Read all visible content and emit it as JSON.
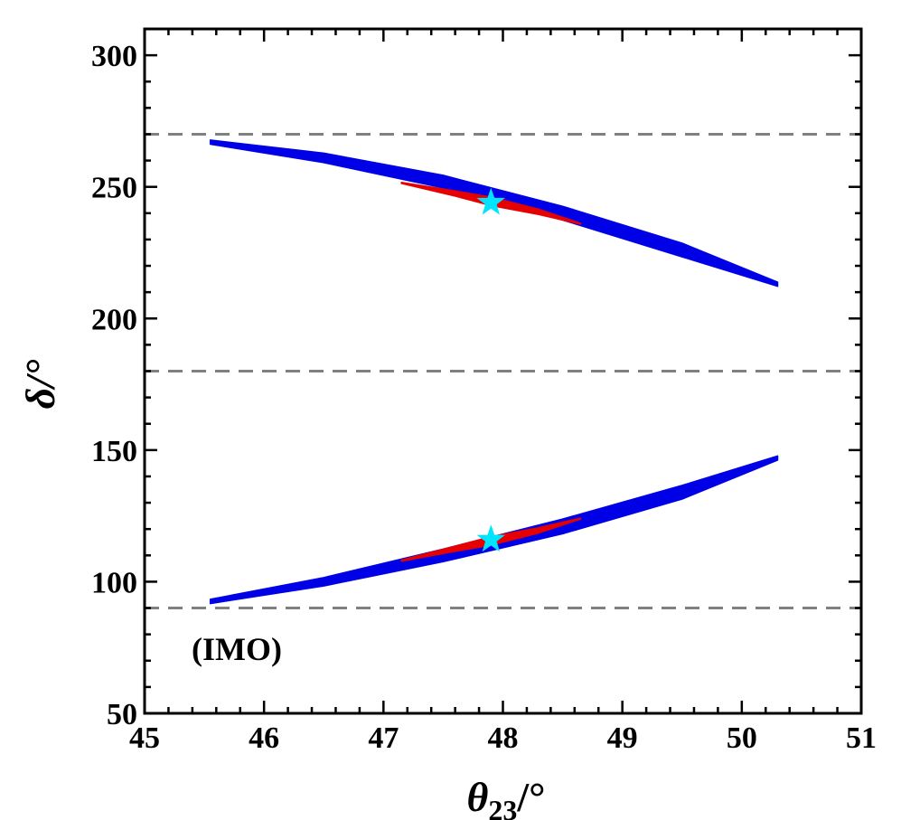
{
  "chart_data": {
    "type": "scatter",
    "xlabel_symbol": "θ",
    "xlabel_sub": "23",
    "xlabel_unit": "/°",
    "ylabel": "δ/°",
    "xlim": [
      45,
      51
    ],
    "ylim": [
      50,
      310
    ],
    "x_ticks": [
      45,
      46,
      47,
      48,
      49,
      50,
      51
    ],
    "y_ticks": [
      50,
      100,
      150,
      200,
      250,
      300
    ],
    "x_tick_labels": [
      "45",
      "46",
      "47",
      "48",
      "49",
      "50",
      "51"
    ],
    "y_tick_labels": [
      "50",
      "100",
      "150",
      "200",
      "250",
      "300"
    ],
    "grid": false,
    "annotation": "(IMO)",
    "reference_lines": [
      {
        "y": 270,
        "style": "dashed",
        "color": "#808080"
      },
      {
        "y": 180,
        "style": "dashed",
        "color": "#808080"
      },
      {
        "y": 90,
        "style": "dashed",
        "color": "#808080"
      }
    ],
    "regions": [
      {
        "color": "#0000e6",
        "points": [
          [
            45.55,
            267
          ],
          [
            46.5,
            261
          ],
          [
            47.5,
            252
          ],
          [
            48.5,
            240
          ],
          [
            49.5,
            226
          ],
          [
            50.3,
            213
          ]
        ],
        "half_widths": [
          0.8,
          1.8,
          2.4,
          2.6,
          2.6,
          0.8
        ]
      },
      {
        "color": "#e60000",
        "points": [
          [
            47.15,
            251.5
          ],
          [
            47.6,
            247.5
          ],
          [
            47.9,
            244.5
          ],
          [
            48.3,
            240.5
          ],
          [
            48.65,
            236
          ]
        ],
        "half_widths": [
          0.2,
          1.0,
          1.6,
          1.0,
          0.2
        ]
      },
      {
        "color": "#0000e6",
        "points": [
          [
            45.55,
            92.5
          ],
          [
            46.5,
            100
          ],
          [
            47.5,
            110
          ],
          [
            48.5,
            121
          ],
          [
            49.5,
            134
          ],
          [
            50.3,
            147
          ]
        ],
        "half_widths": [
          0.8,
          1.6,
          2.4,
          2.8,
          2.6,
          0.8
        ]
      },
      {
        "color": "#e60000",
        "points": [
          [
            47.15,
            108
          ],
          [
            47.6,
            112.5
          ],
          [
            47.9,
            115.5
          ],
          [
            48.3,
            119.5
          ],
          [
            48.65,
            124
          ]
        ],
        "half_widths": [
          0.2,
          1.0,
          1.6,
          1.0,
          0.2
        ]
      }
    ],
    "best_fit_points": [
      {
        "x": 47.9,
        "y": 244,
        "marker": "star",
        "color": "#00e5ff"
      },
      {
        "x": 47.9,
        "y": 116,
        "marker": "star",
        "color": "#00e5ff"
      }
    ]
  }
}
